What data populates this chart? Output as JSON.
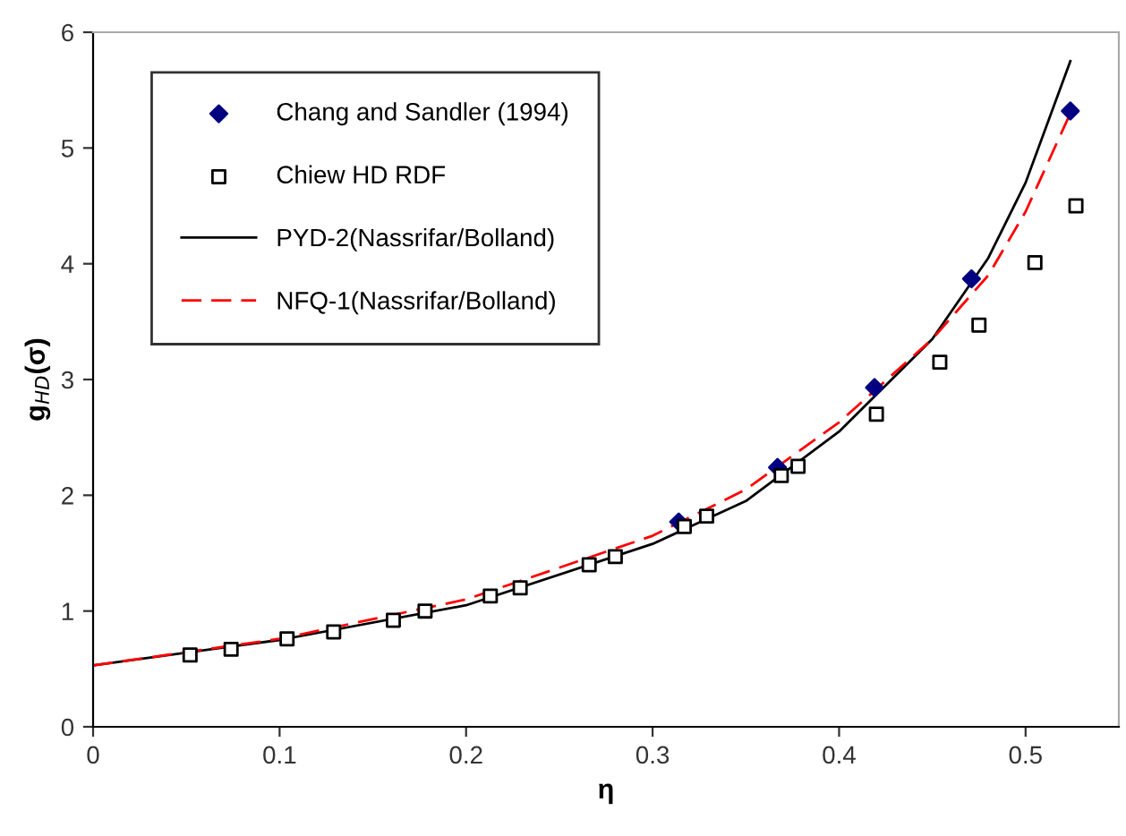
{
  "chart_data": {
    "type": "scatter",
    "xlabel": "η",
    "ylabel": "g$_{HD}$(σ)",
    "xlim": [
      0,
      0.55
    ],
    "ylim": [
      0,
      6
    ],
    "xticks": [
      0,
      0.1,
      0.2,
      0.3,
      0.4,
      0.5
    ],
    "yticks": [
      0,
      1,
      2,
      3,
      4,
      5,
      6
    ],
    "grid": false,
    "legend": "top left",
    "series": [
      {
        "name": "Chang and Sandler (1994)",
        "marker": "diamond",
        "color": "#000080",
        "x": [
          0.314,
          0.367,
          0.419,
          0.471,
          0.524
        ],
        "values": [
          1.77,
          2.24,
          2.93,
          3.87,
          5.32
        ]
      },
      {
        "name": "Chiew HD RDF",
        "marker": "square",
        "color": "#000000",
        "x": [
          0.052,
          0.074,
          0.104,
          0.129,
          0.161,
          0.178,
          0.213,
          0.229,
          0.266,
          0.28,
          0.317,
          0.329,
          0.369,
          0.378,
          0.42,
          0.454,
          0.475,
          0.505,
          0.527
        ],
        "values": [
          0.62,
          0.67,
          0.76,
          0.82,
          0.92,
          1.0,
          1.13,
          1.2,
          1.4,
          1.47,
          1.73,
          1.82,
          2.17,
          2.25,
          2.7,
          3.15,
          3.47,
          4.01,
          4.5
        ]
      },
      {
        "name": "PYD-2(Nassrifar/Bolland)",
        "type": "line",
        "line_style": "solid",
        "color": "#000000",
        "x": [
          0,
          0.1,
          0.2,
          0.3,
          0.35,
          0.4,
          0.45,
          0.48,
          0.5,
          0.524
        ],
        "values": [
          0.53,
          0.75,
          1.05,
          1.58,
          1.95,
          2.55,
          3.35,
          4.05,
          4.7,
          5.75
        ]
      },
      {
        "name": "NFQ-1(Nassrifar/Bolland)",
        "type": "line",
        "line_style": "dashed",
        "color": "#ff0000",
        "x": [
          0,
          0.1,
          0.2,
          0.3,
          0.35,
          0.4,
          0.45,
          0.48,
          0.5,
          0.524
        ],
        "values": [
          0.53,
          0.76,
          1.1,
          1.65,
          2.05,
          2.63,
          3.35,
          3.9,
          4.45,
          5.3
        ]
      }
    ]
  }
}
